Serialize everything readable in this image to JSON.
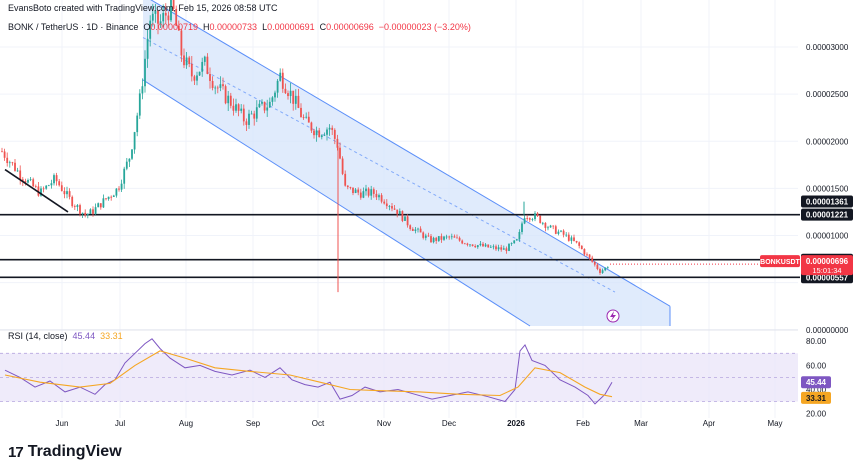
{
  "header": {
    "credit": "EvansBoto created with TradingView.com, Feb 15, 2026 08:58 UTC",
    "symbol": "BONK / TetherUS · 1D · Binance",
    "ohlc": {
      "o_label": "O",
      "o": "0.00000719",
      "h_label": "H",
      "h": "0.00000733",
      "l_label": "L",
      "l": "0.00000691",
      "c_label": "C",
      "c": "0.00000696",
      "change": "−0.00000023 (−3.20%)"
    }
  },
  "rsi_header": {
    "name": "RSI (14, close)",
    "rsi": "45.44",
    "ma": "33.31"
  },
  "logo": {
    "mark": "17",
    "text": "TradingView"
  },
  "colors": {
    "up": "#26a69a",
    "down": "#ef5350",
    "channel_fill": "#d6e4fb",
    "channel_line": "#5b8ff9",
    "rsi_line": "#7e57c2",
    "rsi_ma": "#f5a623",
    "rsi_band": "#e8e3f8",
    "price_tag": "#f23645"
  },
  "chart_data": [
    {
      "type": "candlestick",
      "title": "BONK / TetherUS · 1D · Binance",
      "x_axis": {
        "ticks": [
          "Jun",
          "Jul",
          "Aug",
          "Sep",
          "Oct",
          "Nov",
          "Dec",
          "2026",
          "Feb",
          "Mar",
          "Apr",
          "May"
        ]
      },
      "y_axis": {
        "ticks": [
          "0.00003000",
          "0.00002500",
          "0.00002000",
          "0.00001500",
          "0.00001000",
          "0.00000000"
        ],
        "range": [
          4e-07,
          3.35e-05
        ]
      },
      "anchors": [
        [
          0,
          1.92e-05
        ],
        [
          20,
          1.65e-05
        ],
        [
          40,
          1.45e-05
        ],
        [
          55,
          1.6e-05
        ],
        [
          70,
          1.38e-05
        ],
        [
          85,
          1.22e-05
        ],
        [
          92,
          1.25e-05
        ],
        [
          102,
          1.35e-05
        ],
        [
          118,
          1.5e-05
        ],
        [
          130,
          1.85e-05
        ],
        [
          140,
          2.45e-05
        ],
        [
          150,
          3.3e-05
        ],
        [
          160,
          3.25e-05
        ],
        [
          172,
          3.45e-05
        ],
        [
          182,
          2.9e-05
        ],
        [
          192,
          2.7e-05
        ],
        [
          205,
          2.82e-05
        ],
        [
          215,
          2.6e-05
        ],
        [
          232,
          2.4e-05
        ],
        [
          245,
          2.22e-05
        ],
        [
          258,
          2.33e-05
        ],
        [
          270,
          2.4e-05
        ],
        [
          280,
          2.7e-05
        ],
        [
          292,
          2.48e-05
        ],
        [
          305,
          2.2e-05
        ],
        [
          318,
          2.1e-05
        ],
        [
          330,
          2.15e-05
        ],
        [
          338,
          1.95e-05
        ],
        [
          345,
          1.5e-05
        ],
        [
          360,
          1.45e-05
        ],
        [
          375,
          1.45e-05
        ],
        [
          388,
          1.35e-05
        ],
        [
          398,
          1.25e-05
        ],
        [
          410,
          1.1e-05
        ],
        [
          430,
          9.5e-06
        ],
        [
          450,
          9.8e-06
        ],
        [
          468,
          9.2e-06
        ],
        [
          485,
          8.8e-06
        ],
        [
          505,
          8.5e-06
        ],
        [
          518,
          9.5e-06
        ],
        [
          524,
          1.22e-05
        ],
        [
          536,
          1.2e-05
        ],
        [
          550,
          1.08e-05
        ],
        [
          565,
          1e-05
        ],
        [
          578,
          9e-06
        ],
        [
          590,
          7.5e-06
        ],
        [
          600,
          6.2e-06
        ],
        [
          605,
          6.5e-06
        ],
        [
          610,
          7e-06
        ]
      ],
      "spikes": [
        {
          "x": 338,
          "low": 4e-06
        },
        {
          "x": 524,
          "high": 1.36e-05
        }
      ],
      "channel": {
        "upper_start": [
          143,
          3.55e-05
        ],
        "upper_end": [
          670,
          2.5e-06
        ],
        "lower_start": [
          143,
          2.65e-05
        ],
        "lower_end": [
          530,
          4e-07
        ],
        "dashed_mid": [
          [
            143,
            3.1e-05
          ],
          [
            615,
            4e-06
          ]
        ]
      },
      "trendline": [
        [
          5,
          1.7e-05
        ],
        [
          68,
          1.25e-05
        ]
      ],
      "levels": [
        {
          "value": 1.221e-05,
          "label": "0.00001221",
          "style": "dark"
        },
        {
          "value": 7.43e-06,
          "label": "0.00000743",
          "style": "dark"
        },
        {
          "value": 5.57e-06,
          "label": "0.00000557",
          "style": "dark"
        }
      ],
      "extra_tags": [
        {
          "value": 1.361e-05,
          "label": "0.00001361",
          "style": "dark"
        }
      ],
      "current_price": {
        "symbol": "BONKUSDT",
        "value": "0.00000696",
        "countdown": "15:01:34",
        "level": 6.96e-06
      }
    },
    {
      "type": "line",
      "title": "RSI (14, close)",
      "y_axis": {
        "ticks": [
          "80.00",
          "60.00",
          "40.00",
          "20.00"
        ],
        "range": [
          18,
          86
        ],
        "band": [
          30,
          70
        ]
      },
      "series": [
        {
          "name": "RSI",
          "points": [
            [
              5,
              56
            ],
            [
              20,
              50
            ],
            [
              35,
              42
            ],
            [
              50,
              47
            ],
            [
              65,
              38
            ],
            [
              80,
              42
            ],
            [
              95,
              36
            ],
            [
              105,
              44
            ],
            [
              115,
              48
            ],
            [
              125,
              62
            ],
            [
              135,
              70
            ],
            [
              145,
              78
            ],
            [
              152,
              82
            ],
            [
              160,
              74
            ],
            [
              170,
              66
            ],
            [
              185,
              58
            ],
            [
              200,
              60
            ],
            [
              215,
              55
            ],
            [
              232,
              52
            ],
            [
              250,
              56
            ],
            [
              265,
              50
            ],
            [
              280,
              58
            ],
            [
              292,
              48
            ],
            [
              305,
              44
            ],
            [
              318,
              42
            ],
            [
              330,
              46
            ],
            [
              340,
              32
            ],
            [
              352,
              35
            ],
            [
              365,
              42
            ],
            [
              380,
              38
            ],
            [
              398,
              40
            ],
            [
              415,
              36
            ],
            [
              432,
              32
            ],
            [
              450,
              35
            ],
            [
              468,
              38
            ],
            [
              488,
              34
            ],
            [
              505,
              30
            ],
            [
              515,
              40
            ],
            [
              520,
              72
            ],
            [
              525,
              77
            ],
            [
              532,
              64
            ],
            [
              545,
              60
            ],
            [
              560,
              48
            ],
            [
              575,
              42
            ],
            [
              588,
              35
            ],
            [
              595,
              28
            ],
            [
              600,
              32
            ],
            [
              605,
              36
            ],
            [
              612,
              46
            ]
          ]
        },
        {
          "name": "RSI-based MA",
          "points": [
            [
              5,
              52
            ],
            [
              40,
              46
            ],
            [
              80,
              42
            ],
            [
              110,
              45
            ],
            [
              135,
              60
            ],
            [
              160,
              72
            ],
            [
              185,
              66
            ],
            [
              215,
              58
            ],
            [
              250,
              55
            ],
            [
              290,
              52
            ],
            [
              320,
              46
            ],
            [
              350,
              40
            ],
            [
              380,
              39
            ],
            [
              420,
              38
            ],
            [
              460,
              36
            ],
            [
              500,
              35
            ],
            [
              518,
              42
            ],
            [
              535,
              58
            ],
            [
              560,
              54
            ],
            [
              585,
              42
            ],
            [
              600,
              36
            ],
            [
              612,
              34
            ]
          ]
        }
      ],
      "current": {
        "rsi": "45.44",
        "ma": "33.31"
      }
    }
  ]
}
